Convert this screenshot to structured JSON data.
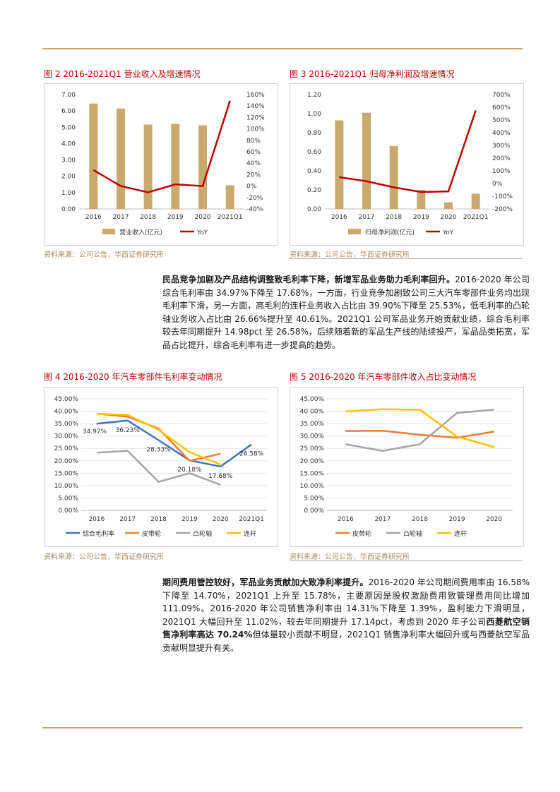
{
  "fig2": {
    "title": "图 2  2016-2021Q1 营业收入及增速情况",
    "source": "资料来源：公司公告，华西证券研究所"
  },
  "fig3": {
    "title": "图 3  2016-2021Q1 归母净利润及增速情况",
    "source": "资料来源：公司公告，华西证券研究所"
  },
  "fig4": {
    "title": "图 4  2016-2020 年汽车零部件毛利率变动情况",
    "source": "资料来源：公司公告，华西证券研究所"
  },
  "fig5": {
    "title": "图 5  2016-2020 年汽车零部件收入占比变动情况",
    "source": "资料来源：公司公告，华西证券研究所"
  },
  "para1": {
    "lead": "民品竞争加剧及产品结构调整致毛利率下降，新增军品业务助力毛利率回升。",
    "body": "2016-2020 年公司综合毛利率由 34.97%下降至 17.68%，一方面，行业竞争加剧致公司三大汽车零部件业务均出现毛利率下滑，另一方面，高毛利的连杆业务收入占比由 39.90%下降至 25.53%，低毛利率的凸轮轴业务收入占比由 26.66%提升至 40.61%。2021Q1 公司军品业务开始贡献业绩，综合毛利率较去年同期提升 14.98pct 至 26.58%，后续随着新的军品生产线的陆续投产，军品品类拓宽，军品占比提升，综合毛利率有进一步提高的趋势。"
  },
  "para2": {
    "lead": "期间费用管控较好，军品业务贡献加大致净利率提升。",
    "body1": "2016-2020 年公司期间费用率由 16.58%下降至 14.70%，2021Q1 上升至 15.78%，主要原因是股权激励费用致管理费用同比增加 111.09%。2016-2020 年公司销售净利率由 14.31%下降至 1.39%，盈利能力下滑明显，2021Q1 大幅回升至 11.02%，较去年同期提升 17.14pct，考虑到 2020 年子公司",
    "bold": "西菱航空销售净利率高达 70.24%",
    "body2": "但体量较小贡献不明显，2021Q1 销售净利率大幅回升或与西菱航空军品贡献明显提升有关。"
  },
  "chart_data": [
    {
      "id": "fig2",
      "type": "bar",
      "categories": [
        "2016",
        "2017",
        "2018",
        "2019",
        "2020",
        "2021Q1"
      ],
      "series": [
        {
          "name": "营业收入(亿元)",
          "type": "bar",
          "axis": "left",
          "values": [
            6.45,
            6.15,
            5.17,
            5.21,
            5.12,
            1.45
          ],
          "color": "#c9a96e"
        },
        {
          "name": "YoY",
          "type": "line",
          "axis": "right",
          "values": [
            28,
            0,
            -11,
            3,
            0,
            149
          ],
          "color": "#c00000"
        }
      ],
      "y_left": {
        "min": 0,
        "max": 7,
        "ticks": [
          "0.00",
          "1.00",
          "2.00",
          "3.00",
          "4.00",
          "5.00",
          "6.00",
          "7.00"
        ]
      },
      "y_right": {
        "min": -40,
        "max": 160,
        "ticks": [
          "-40%",
          "-20%",
          "0%",
          "20%",
          "40%",
          "60%",
          "80%",
          "100%",
          "120%",
          "140%",
          "160%"
        ]
      },
      "legend": "bottom"
    },
    {
      "id": "fig3",
      "type": "bar",
      "categories": [
        "2016",
        "2017",
        "2018",
        "2019",
        "2020",
        "2021Q1"
      ],
      "series": [
        {
          "name": "归母净利润(亿元)",
          "type": "bar",
          "axis": "left",
          "values": [
            0.93,
            1.01,
            0.66,
            0.2,
            0.07,
            0.16
          ],
          "color": "#c9a96e"
        },
        {
          "name": "YoY",
          "type": "line",
          "axis": "right",
          "values": [
            50,
            18,
            -30,
            -67,
            -62,
            575
          ],
          "color": "#c00000"
        }
      ],
      "y_left": {
        "min": 0,
        "max": 1.2,
        "ticks": [
          "0.00",
          "0.20",
          "0.40",
          "0.60",
          "0.80",
          "1.00",
          "1.20"
        ]
      },
      "y_right": {
        "min": -200,
        "max": 700,
        "ticks": [
          "-200%",
          "-100%",
          "0%",
          "100%",
          "200%",
          "300%",
          "400%",
          "500%",
          "600%",
          "700%"
        ]
      },
      "legend": "bottom"
    },
    {
      "id": "fig4",
      "type": "line",
      "categories": [
        "2016",
        "2017",
        "2018",
        "2019",
        "2020",
        "2021Q1"
      ],
      "series": [
        {
          "name": "综合毛利率",
          "values": [
            34.97,
            36.23,
            28.33,
            20.18,
            17.68,
            26.58
          ],
          "color": "#4472c4"
        },
        {
          "name": "皮带轮",
          "values": [
            39.0,
            37.8,
            33.0,
            20.0,
            22.8,
            null
          ],
          "color": "#ed7d31"
        },
        {
          "name": "凸轮轴",
          "values": [
            23.3,
            24.0,
            11.5,
            15.0,
            10.3,
            null
          ],
          "color": "#a5a5a5"
        },
        {
          "name": "连杆",
          "values": [
            39.0,
            38.5,
            32.5,
            23.5,
            18.5,
            null
          ],
          "color": "#ffc000"
        }
      ],
      "data_labels": [
        "34.97%",
        "36.23%",
        "28.33%",
        "20.18%",
        "17.68%",
        "26.58%"
      ],
      "y": {
        "min": 0,
        "max": 45,
        "ticks": [
          "0.00%",
          "5.00%",
          "10.00%",
          "15.00%",
          "20.00%",
          "25.00%",
          "30.00%",
          "35.00%",
          "40.00%",
          "45.00%"
        ]
      },
      "legend": "bottom"
    },
    {
      "id": "fig5",
      "type": "line",
      "categories": [
        "2016",
        "2017",
        "2018",
        "2019",
        "2020"
      ],
      "series": [
        {
          "name": "皮带轮",
          "values": [
            32.0,
            32.1,
            30.5,
            29.3,
            31.8
          ],
          "color": "#ed7d31"
        },
        {
          "name": "凸轮轴",
          "values": [
            26.66,
            24.0,
            26.7,
            39.3,
            40.61
          ],
          "color": "#a5a5a5"
        },
        {
          "name": "连杆",
          "values": [
            39.9,
            40.8,
            40.6,
            29.8,
            25.53
          ],
          "color": "#ffc000"
        }
      ],
      "y": {
        "min": 0,
        "max": 45,
        "ticks": [
          "0.00%",
          "5.00%",
          "10.00%",
          "15.00%",
          "20.00%",
          "25.00%",
          "30.00%",
          "35.00%",
          "40.00%",
          "45.00%"
        ]
      },
      "legend": "bottom"
    }
  ]
}
